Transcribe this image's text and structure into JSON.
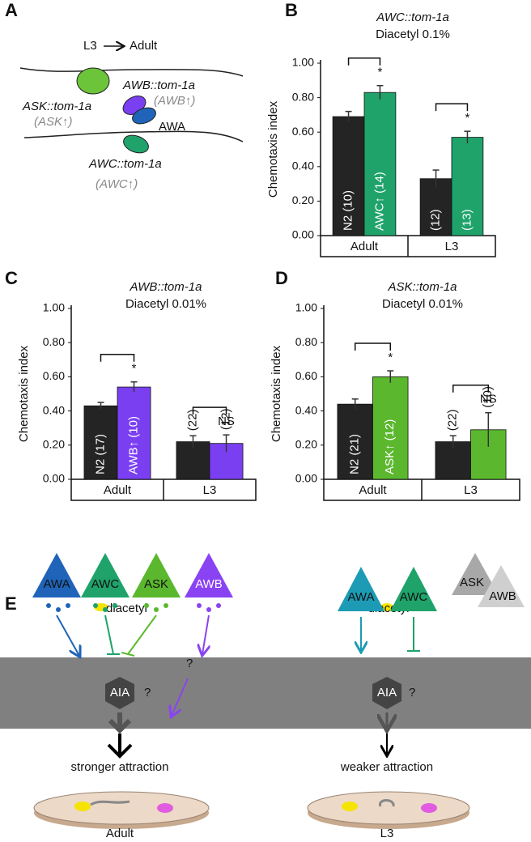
{
  "panel_a": {
    "label": "A",
    "from": "L3",
    "to": "Adult",
    "ask": "ASK::tom-1a",
    "ask_up": "(ASK↑)",
    "awb": "AWB::tom-1a",
    "awb_up": "(AWB↑)",
    "awa": "AWA",
    "awc": "AWC::tom-1a",
    "awc_up": "(AWC↑)"
  },
  "chart_data": [
    {
      "type": "bar",
      "panel_label": "B",
      "title": "AWC::tom-1a",
      "subtitle": "Diacetyl 0.1%",
      "ylabel": "Chemotaxis index",
      "categories": [
        "Adult",
        "L3"
      ],
      "ylim": [
        0,
        1
      ],
      "yticks": [
        {
          "value": 0,
          "label": "0.00"
        },
        {
          "value": 0.2,
          "label": "0.20"
        },
        {
          "value": 0.4,
          "label": "0.40"
        },
        {
          "value": 0.6,
          "label": "0.60"
        },
        {
          "value": 0.8,
          "label": "0.80"
        },
        {
          "value": 1,
          "label": "1.00"
        }
      ],
      "series": [
        {
          "color": "#242424",
          "values": [
            0.69,
            0.33
          ],
          "errors": [
            0.03,
            0.05
          ],
          "bar_labels": [
            "N2 (10)",
            "(12)"
          ]
        },
        {
          "color": "#1fa36b",
          "values": [
            0.83,
            0.57
          ],
          "errors": [
            0.04,
            0.035
          ],
          "bar_labels": [
            "AWC↑ (14)",
            "(13)"
          ]
        }
      ],
      "annotations": [
        "*",
        "*"
      ]
    },
    {
      "type": "bar",
      "panel_label": "C",
      "title": "AWB::tom-1a",
      "subtitle": "Diacetyl 0.01%",
      "ylabel": "Chemotaxis index",
      "categories": [
        "Adult",
        "L3"
      ],
      "ylim": [
        0,
        1
      ],
      "yticks": [
        {
          "value": 0,
          "label": "0.00"
        },
        {
          "value": 0.2,
          "label": "0.20"
        },
        {
          "value": 0.4,
          "label": "0.40"
        },
        {
          "value": 0.6,
          "label": "0.60"
        },
        {
          "value": 0.8,
          "label": "0.80"
        },
        {
          "value": 1,
          "label": "1.00"
        }
      ],
      "series": [
        {
          "color": "#242424",
          "values": [
            0.43,
            0.22
          ],
          "errors": [
            0.02,
            0.035
          ],
          "bar_labels": [
            "N2 (17)",
            "(22)"
          ]
        },
        {
          "color": "#7b3ff2",
          "values": [
            0.54,
            0.21
          ],
          "errors": [
            0.03,
            0.05
          ],
          "bar_labels": [
            "AWB↑ (10)",
            "(12)"
          ]
        }
      ],
      "annotations": [
        "*",
        "NS"
      ]
    },
    {
      "type": "bar",
      "panel_label": "D",
      "title": "ASK::tom-1a",
      "subtitle": "Diacetyl 0.01%",
      "ylabel": "Chemotaxis index",
      "categories": [
        "Adult",
        "L3"
      ],
      "ylim": [
        0,
        1
      ],
      "yticks": [
        {
          "value": 0,
          "label": "0.00"
        },
        {
          "value": 0.2,
          "label": "0.20"
        },
        {
          "value": 0.4,
          "label": "0.40"
        },
        {
          "value": 0.6,
          "label": "0.60"
        },
        {
          "value": 0.8,
          "label": "0.80"
        },
        {
          "value": 1,
          "label": "1.00"
        }
      ],
      "series": [
        {
          "color": "#242424",
          "values": [
            0.44,
            0.22
          ],
          "errors": [
            0.03,
            0.035
          ],
          "bar_labels": [
            "N2 (21)",
            "(22)"
          ]
        },
        {
          "color": "#5bb82e",
          "values": [
            0.6,
            0.29
          ],
          "errors": [
            0.035,
            0.1
          ],
          "bar_labels": [
            "ASK↑ (12)",
            "(10)"
          ]
        }
      ],
      "annotations": [
        "*",
        "NS"
      ]
    }
  ],
  "panel_e": {
    "label": "E",
    "adult": {
      "odor": "diacetyl",
      "neurons": [
        "AWA",
        "AWC",
        "ASK",
        "AWB"
      ],
      "interneuron": "AIA",
      "unknown": [
        "?",
        "?"
      ],
      "outcome": "stronger attraction",
      "stage": "Adult"
    },
    "l3": {
      "odor": "diacetyl",
      "neurons": [
        "AWA",
        "AWC",
        "ASK",
        "AWB"
      ],
      "interneuron": "AIA",
      "unknown": [
        "?"
      ],
      "outcome": "weaker attraction",
      "stage": "L3"
    }
  }
}
